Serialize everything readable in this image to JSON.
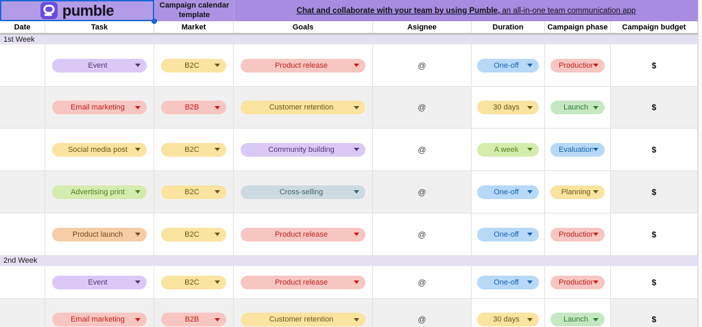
{
  "sheet": {
    "brand": {
      "wordmark": "pumble"
    },
    "template_title": "Campaign calendar template",
    "banner": {
      "bold_text": "Chat and collaborate with your team by using Pumble,",
      "regular_text": " an all-in-one team communication app"
    },
    "column_headers": [
      "Date",
      "Task",
      "Market",
      "Goals",
      "Asignee",
      "Duration",
      "Campaign phase",
      "Campaign budget"
    ],
    "colors": {
      "top_row_bg": "#a78ce1",
      "selected_cell_bg": "#b29ce7",
      "selection_border": "#1967d2",
      "week_band_bg": "#e5dff2",
      "alt_row_bg": "#f1f0f0",
      "logo_tile": "#6a4be0",
      "pill_palette": {
        "purple": {
          "bg": "#dac9f5",
          "fg": "#4f3a78"
        },
        "yellow": {
          "bg": "#fbe3a0",
          "fg": "#6d5716"
        },
        "red": {
          "bg": "#f7c6c1",
          "fg": "#c0211e"
        },
        "blue": {
          "bg": "#b7d9f7",
          "fg": "#1862b5"
        },
        "green": {
          "bg": "#c5e8c3",
          "fg": "#2f7d33"
        },
        "lime": {
          "bg": "#d4ecae",
          "fg": "#55801f"
        },
        "slate": {
          "bg": "#ccdbe2",
          "fg": "#435f6b"
        },
        "orange": {
          "bg": "#f6cda7",
          "fg": "#76491a"
        }
      }
    },
    "sections": [
      {
        "label": "1st Week",
        "rows": [
          {
            "task": {
              "label": "Event",
              "color": "purple"
            },
            "market": {
              "label": "B2C",
              "color": "yellow"
            },
            "goals": {
              "label": "Product release",
              "color": "red"
            },
            "assignee": "@",
            "duration": {
              "label": "One-off",
              "color": "blue"
            },
            "phase": {
              "label": "Production",
              "color": "red"
            },
            "budget": "$"
          },
          {
            "task": {
              "label": "Email marketing",
              "color": "red"
            },
            "market": {
              "label": "B2B",
              "color": "red"
            },
            "goals": {
              "label": "Customer retention",
              "color": "yellow"
            },
            "assignee": "@",
            "duration": {
              "label": "30 days",
              "color": "yellow"
            },
            "phase": {
              "label": "Launch",
              "color": "green"
            },
            "budget": "$"
          },
          {
            "task": {
              "label": "Social media post",
              "color": "yellow"
            },
            "market": {
              "label": "B2C",
              "color": "yellow"
            },
            "goals": {
              "label": "Community building",
              "color": "purple"
            },
            "assignee": "@",
            "duration": {
              "label": "A week",
              "color": "lime"
            },
            "phase": {
              "label": "Evaluation",
              "color": "blue"
            },
            "budget": "$"
          },
          {
            "task": {
              "label": "Advertising print",
              "color": "lime"
            },
            "market": {
              "label": "B2C",
              "color": "yellow"
            },
            "goals": {
              "label": "Cross-selling",
              "color": "slate"
            },
            "assignee": "@",
            "duration": {
              "label": "One-off",
              "color": "blue"
            },
            "phase": {
              "label": "Planning",
              "color": "yellow"
            },
            "budget": "$"
          },
          {
            "task": {
              "label": "Product launch",
              "color": "orange"
            },
            "market": {
              "label": "B2C",
              "color": "yellow"
            },
            "goals": {
              "label": "Product release",
              "color": "red"
            },
            "assignee": "@",
            "duration": {
              "label": "One-off",
              "color": "blue"
            },
            "phase": {
              "label": "Production",
              "color": "red"
            },
            "budget": "$"
          }
        ]
      },
      {
        "label": "2nd Week",
        "rows": [
          {
            "task": {
              "label": "Event",
              "color": "purple"
            },
            "market": {
              "label": "B2C",
              "color": "yellow"
            },
            "goals": {
              "label": "Product release",
              "color": "red"
            },
            "assignee": "@",
            "duration": {
              "label": "One-off",
              "color": "blue"
            },
            "phase": {
              "label": "Production",
              "color": "red"
            },
            "budget": "$"
          },
          {
            "task": {
              "label": "Email marketing",
              "color": "red"
            },
            "market": {
              "label": "B2B",
              "color": "red"
            },
            "goals": {
              "label": "Customer retention",
              "color": "yellow"
            },
            "assignee": "@",
            "duration": {
              "label": "30 days",
              "color": "yellow"
            },
            "phase": {
              "label": "Launch",
              "color": "green"
            },
            "budget": "$"
          }
        ]
      }
    ]
  }
}
